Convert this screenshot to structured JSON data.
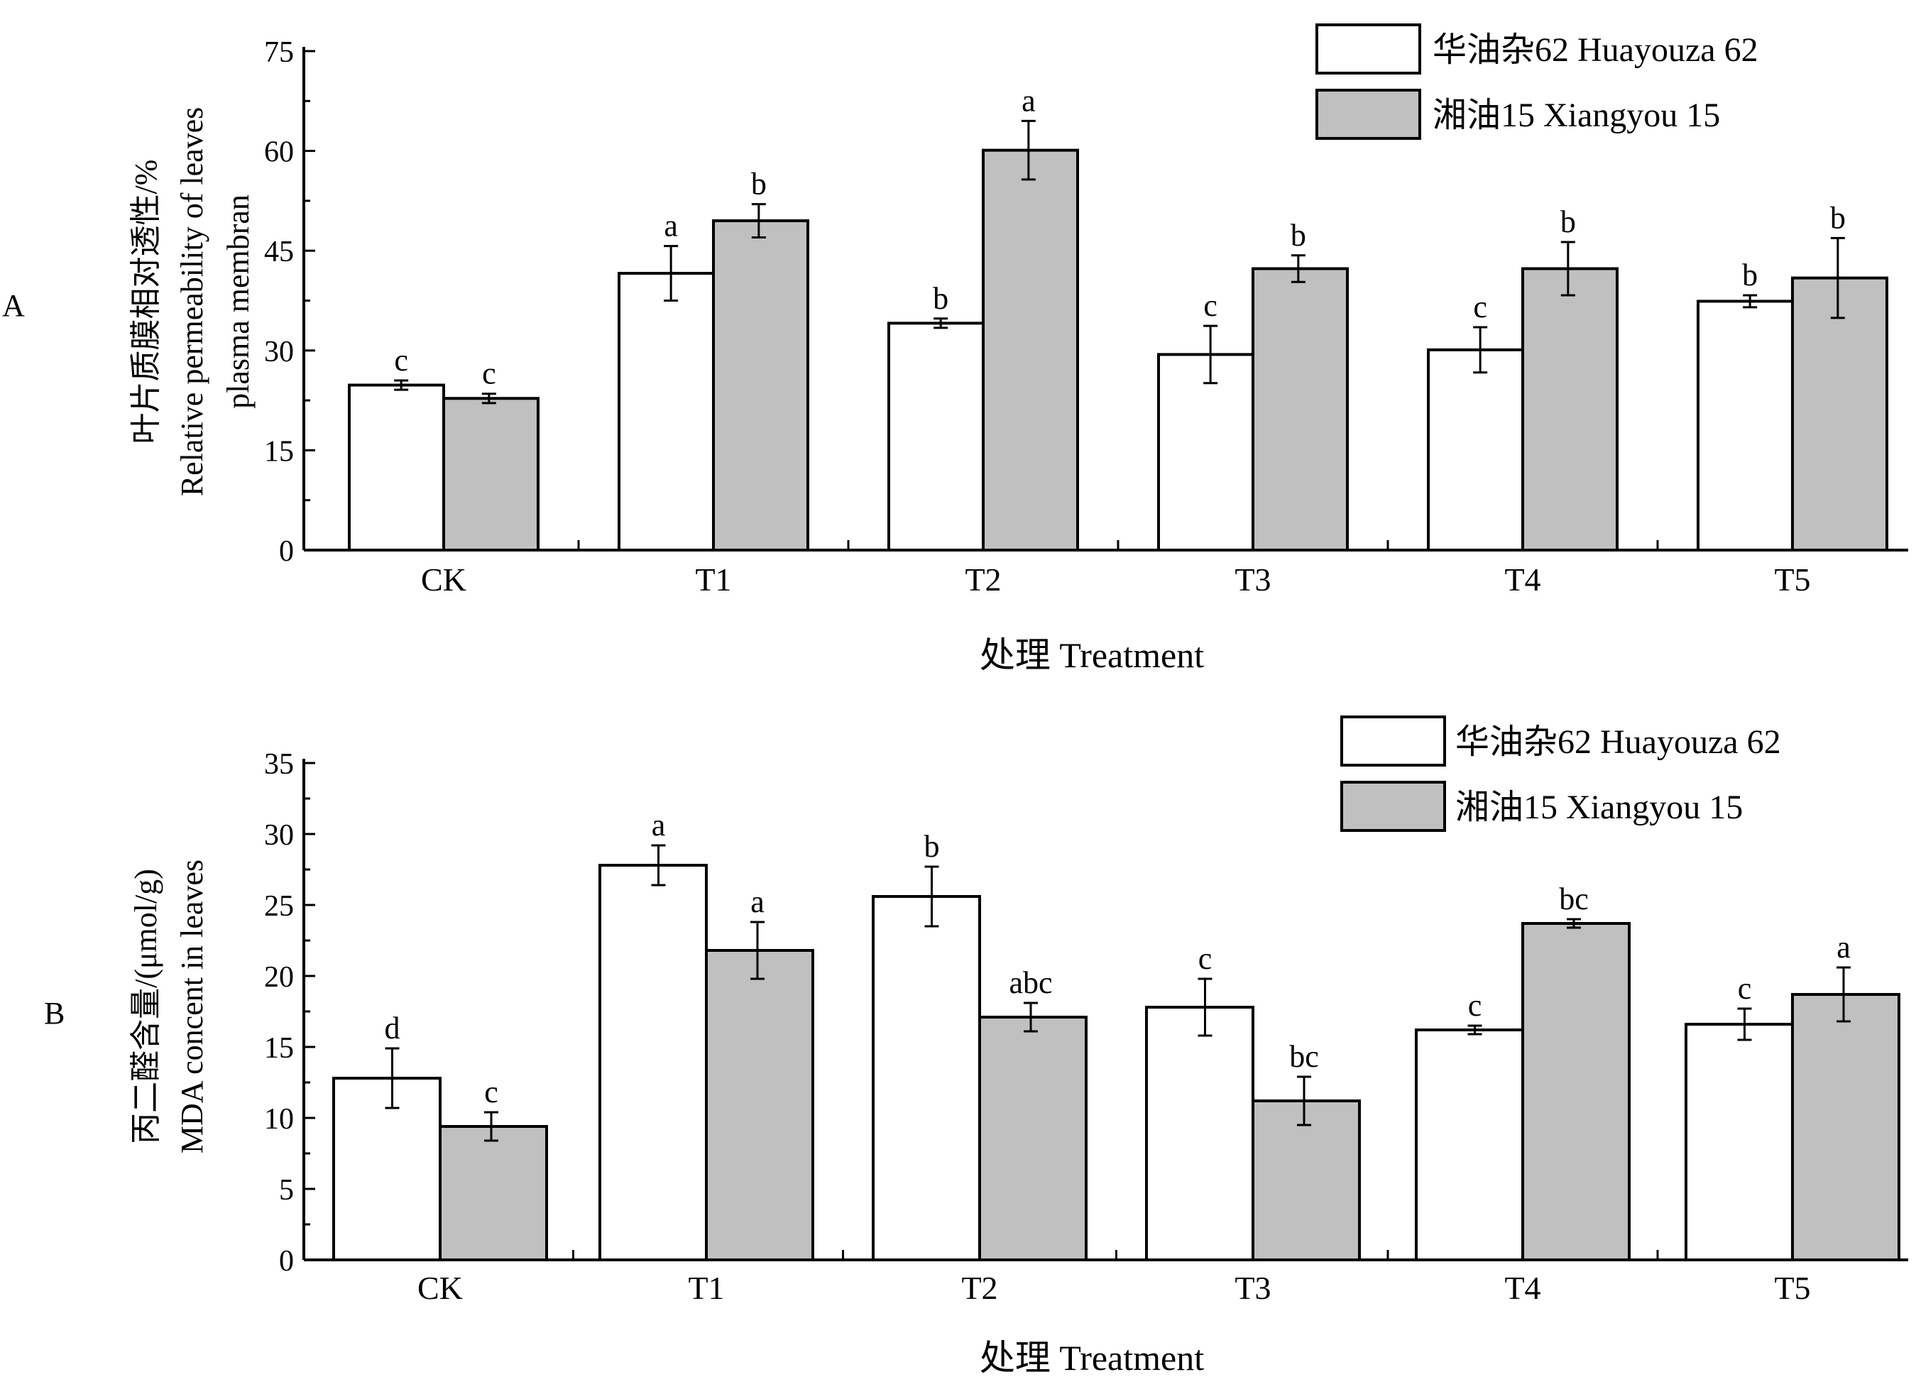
{
  "colors": {
    "series_1": "#ffffff",
    "series_2": "#c0c0c0",
    "stroke": "#000000"
  },
  "chart_data": [
    {
      "panel_label": "A",
      "type": "bar",
      "categories": [
        "CK",
        "T1",
        "T2",
        "T3",
        "T4",
        "T5"
      ],
      "xlabel": "处理 Treatment",
      "ylabel_lines": [
        "叶片质膜相对透性/%",
        "Relative permeability of leaves",
        "plasma membran"
      ],
      "ylim": [
        0,
        75
      ],
      "yticks": [
        0,
        15,
        30,
        45,
        60,
        75
      ],
      "legend_position": "top-right",
      "series": [
        {
          "name": "华油杂62  Huayouza 62",
          "values": [
            24.8,
            41.6,
            34.1,
            29.4,
            30.1,
            37.4
          ],
          "errors": [
            0.7,
            4.1,
            0.7,
            4.3,
            3.4,
            0.9
          ],
          "letters": [
            "c",
            "a",
            "b",
            "c",
            "c",
            "b"
          ]
        },
        {
          "name": "湘油15 Xiangyou 15",
          "values": [
            22.8,
            49.5,
            60.1,
            42.3,
            42.3,
            40.9
          ],
          "errors": [
            0.7,
            2.5,
            4.4,
            2.0,
            4.0,
            6.0
          ],
          "letters": [
            "c",
            "b",
            "a",
            "b",
            "b",
            "b"
          ]
        }
      ]
    },
    {
      "panel_label": "B",
      "type": "bar",
      "categories": [
        "CK",
        "T1",
        "T2",
        "T3",
        "T4",
        "T5"
      ],
      "xlabel": "处理  Treatment",
      "ylabel_lines": [
        "丙二醛含量/(μmol/g)",
        "MDA concent in leaves"
      ],
      "ylim": [
        0,
        35
      ],
      "yticks": [
        0,
        5,
        10,
        15,
        20,
        25,
        30,
        35
      ],
      "legend_position": "top-right",
      "series": [
        {
          "name": "华油杂62  Huayouza 62",
          "values": [
            12.8,
            27.8,
            25.6,
            17.8,
            16.2,
            16.6
          ],
          "errors": [
            2.1,
            1.4,
            2.1,
            2.0,
            0.3,
            1.1
          ],
          "letters": [
            "d",
            "a",
            "b",
            "c",
            "c",
            "c"
          ]
        },
        {
          "name": "湘油15 Xiangyou 15",
          "values": [
            9.4,
            21.8,
            17.1,
            11.2,
            23.7,
            18.7
          ],
          "errors": [
            1.0,
            2.0,
            1.0,
            1.7,
            0.3,
            1.9
          ],
          "letters": [
            "c",
            "a",
            "abc",
            "bc",
            "bc",
            "a"
          ]
        }
      ]
    }
  ]
}
